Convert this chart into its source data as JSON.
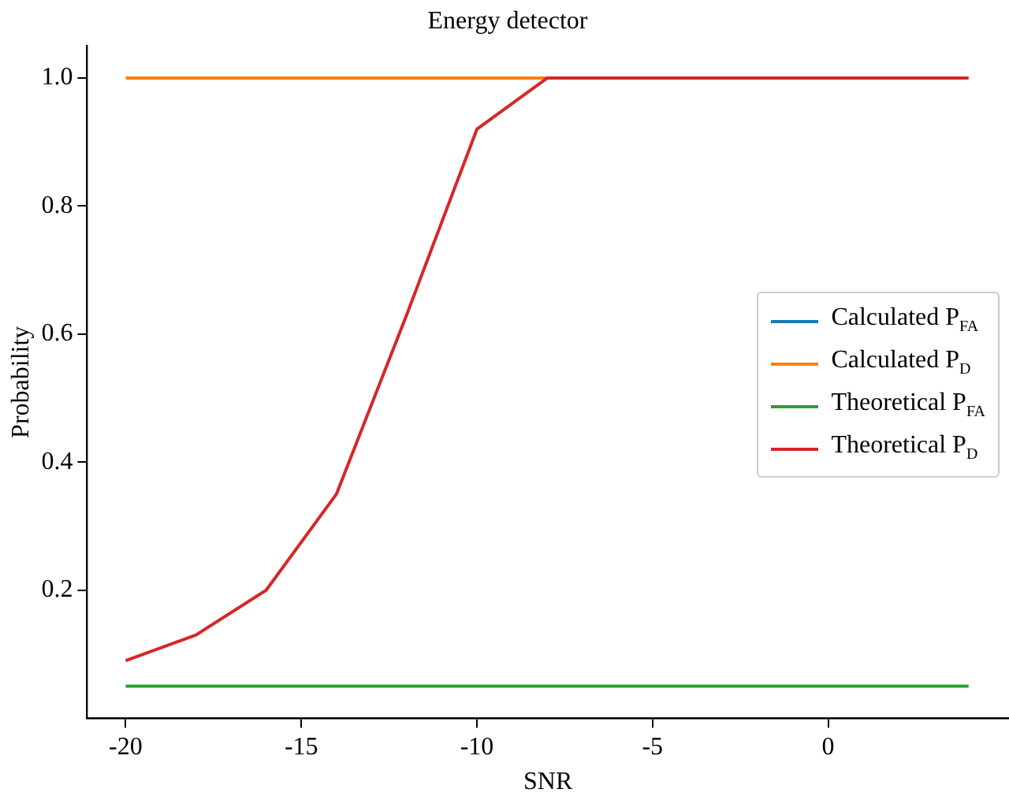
{
  "chart_data": {
    "type": "line",
    "title": "Energy detector",
    "xlabel": "SNR",
    "ylabel": "Probability",
    "x": [
      -20,
      -18,
      -16,
      -14,
      -12,
      -10,
      -8,
      -6,
      -4,
      -2,
      0,
      2,
      4
    ],
    "xlim": [
      -21.1,
      5.15
    ],
    "xticks": [
      -20,
      -15,
      -10,
      -5,
      0
    ],
    "ylim": [
      0,
      1.05
    ],
    "yticks": [
      0.2,
      0.4,
      0.6,
      0.8,
      {
        "value": 1,
        "label": "1.0"
      }
    ],
    "grid": false,
    "legend": "right",
    "marker": "none",
    "line_style": "solid",
    "series": [
      {
        "name": "Calculated P$_{FA}$",
        "color": "#1f77b4",
        "values": [
          null,
          null,
          null,
          null,
          null,
          null,
          null,
          null,
          null,
          null,
          null,
          null,
          null
        ]
      },
      {
        "name": "Calculated P$_{D}$",
        "color": "#ff7f0e",
        "values": [
          1.0,
          1.0,
          1.0,
          1.0,
          1.0,
          1.0,
          1.0,
          null,
          null,
          null,
          null,
          null,
          null
        ]
      },
      {
        "name": "Theoretical P$_{FA}$",
        "color": "#2ca02c",
        "values": [
          0.05,
          0.05,
          0.05,
          0.05,
          0.05,
          0.05,
          0.05,
          0.05,
          0.05,
          0.05,
          0.05,
          0.05,
          0.05
        ]
      },
      {
        "name": "Theoretical P$_{D}$",
        "color": "#d62728",
        "values": [
          0.09,
          0.13,
          0.2,
          0.35,
          0.63,
          0.92,
          1.0,
          1.0,
          1.0,
          1.0,
          1.0,
          1.0,
          1.0
        ]
      }
    ]
  }
}
